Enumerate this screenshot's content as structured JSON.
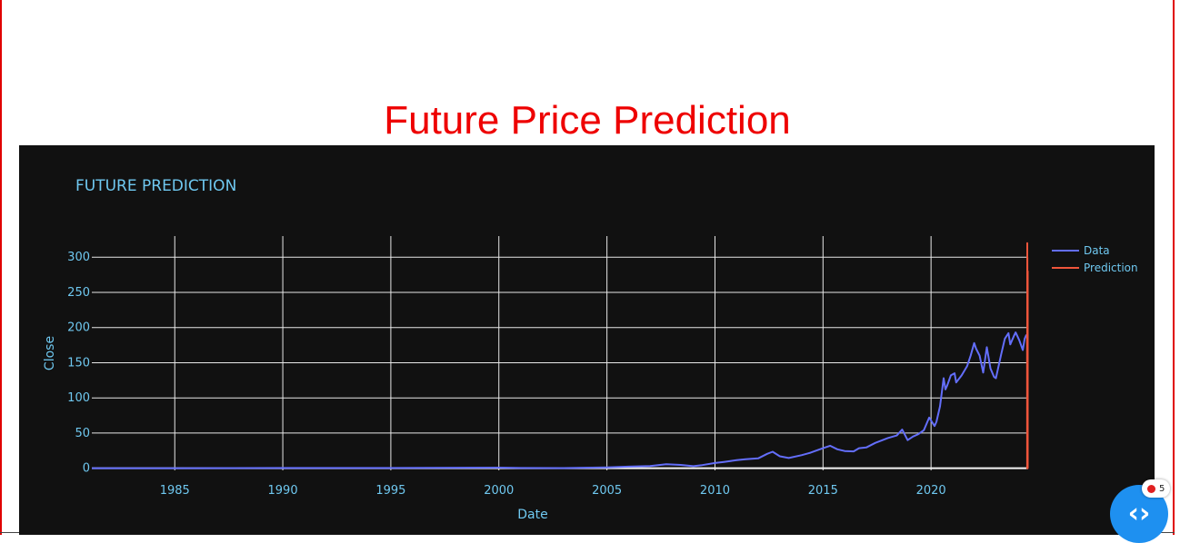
{
  "page": {
    "title": "Future Price Prediction"
  },
  "chart_data": {
    "type": "line",
    "title": "FUTURE PREDICTION",
    "xlabel": "Date",
    "ylabel": "Close",
    "xlim": [
      "1981-03-01",
      "2024-06-30"
    ],
    "ylim": [
      -3,
      330
    ],
    "x_ticks": [
      "1985",
      "1990",
      "1995",
      "2000",
      "2005",
      "2010",
      "2015",
      "2020"
    ],
    "y_ticks": [
      0,
      50,
      100,
      150,
      200,
      250,
      300
    ],
    "grid": true,
    "legend_position": "top-right",
    "series": [
      {
        "name": "Data",
        "color": "#636efa",
        "x": [
          "1981-03-01",
          "1985-01-01",
          "1990-01-01",
          "1995-01-01",
          "2000-01-01",
          "2000-12-31",
          "2003-01-01",
          "2005-01-01",
          "2006-01-01",
          "2007-01-01",
          "2007-10-01",
          "2008-06-01",
          "2009-01-01",
          "2009-06-01",
          "2010-01-01",
          "2010-06-01",
          "2011-01-01",
          "2011-06-01",
          "2012-01-01",
          "2012-06-01",
          "2012-09-01",
          "2013-01-01",
          "2013-06-01",
          "2014-01-01",
          "2014-06-01",
          "2015-01-01",
          "2015-05-01",
          "2015-09-01",
          "2016-01-01",
          "2016-06-01",
          "2016-09-01",
          "2017-01-01",
          "2017-06-01",
          "2018-01-01",
          "2018-06-01",
          "2018-09-01",
          "2018-12-01",
          "2019-03-01",
          "2019-06-01",
          "2019-09-01",
          "2019-12-01",
          "2020-03-01",
          "2020-04-01",
          "2020-06-01",
          "2020-08-01",
          "2020-09-01",
          "2020-10-01",
          "2020-12-01",
          "2021-02-01",
          "2021-03-01",
          "2021-06-01",
          "2021-09-01",
          "2021-11-01",
          "2021-12-31",
          "2022-02-01",
          "2022-04-01",
          "2022-06-01",
          "2022-08-01",
          "2022-10-01",
          "2022-12-01",
          "2023-01-01",
          "2023-04-01",
          "2023-06-01",
          "2023-08-01",
          "2023-09-01",
          "2023-11-01",
          "2023-12-01",
          "2024-02-01",
          "2024-04-01",
          "2024-05-01",
          "2024-06-01"
        ],
        "y": [
          0.1,
          0.1,
          0.3,
          0.35,
          0.9,
          0.3,
          0.25,
          1.2,
          2.3,
          3.2,
          5.8,
          4.8,
          3.0,
          4.5,
          7.5,
          9.0,
          11.5,
          12.8,
          14.0,
          20.5,
          23.5,
          17.0,
          14.5,
          18.5,
          22.0,
          28.5,
          32.0,
          27.0,
          24.5,
          24.0,
          28.5,
          29.5,
          36.0,
          43.0,
          46.5,
          55.0,
          40.0,
          45.0,
          48.5,
          54.0,
          72.0,
          60.0,
          66.0,
          88.0,
          128.0,
          112.0,
          118.0,
          132.0,
          135.0,
          122.0,
          132.0,
          145.0,
          160.0,
          178.0,
          170.0,
          160.0,
          136.0,
          172.0,
          142.0,
          130.0,
          128.0,
          162.0,
          184.0,
          192.0,
          176.0,
          188.0,
          193.0,
          182.0,
          168.0,
          184.0,
          190.0
        ]
      },
      {
        "name": "Prediction",
        "color": "#ef553b",
        "x": [
          "2024-06-12",
          "2024-06-13",
          "2024-06-14",
          "2024-06-15",
          "2024-06-16",
          "2024-06-17",
          "2024-06-18",
          "2024-06-19",
          "2024-06-20",
          "2024-06-21",
          "2024-06-22",
          "2024-06-23"
        ],
        "y": [
          190,
          0,
          320,
          150,
          300,
          180,
          260,
          0,
          240,
          160,
          280,
          0
        ]
      }
    ]
  }
}
